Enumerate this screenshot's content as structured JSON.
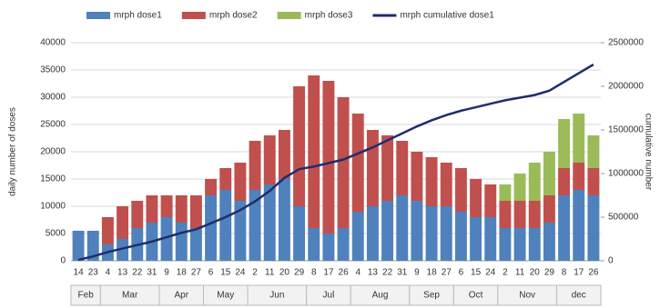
{
  "chart_data": {
    "type": "bar",
    "categories": [
      "14",
      "23",
      "4",
      "13",
      "22",
      "31",
      "9",
      "18",
      "27",
      "6",
      "15",
      "24",
      "2",
      "11",
      "20",
      "29",
      "8",
      "17",
      "26",
      "4",
      "13",
      "22",
      "31",
      "9",
      "18",
      "27",
      "6",
      "15",
      "24",
      "2",
      "11",
      "20",
      "29",
      "8",
      "17",
      "26"
    ],
    "months": [
      "Feb",
      "Mar",
      "Apr",
      "May",
      "Jun",
      "Jul",
      "Aug",
      "Sep",
      "Oct",
      "Nov",
      "dec"
    ],
    "series": [
      {
        "name": "mrph dose1",
        "color": "#4f81bd",
        "values": [
          5500,
          5500,
          3000,
          4000,
          6000,
          7000,
          8000,
          7000,
          6000,
          12000,
          13000,
          11000,
          13000,
          14000,
          15000,
          10000,
          6000,
          5000,
          6000,
          9000,
          10000,
          11000,
          12000,
          11000,
          10000,
          10000,
          9000,
          8000,
          8000,
          6000,
          6000,
          6000,
          7000,
          12000,
          13000,
          12000
        ]
      },
      {
        "name": "mrph dose2",
        "color": "#c0504d",
        "values": [
          0,
          0,
          5000,
          6000,
          5000,
          5000,
          4000,
          5000,
          6000,
          3000,
          4000,
          7000,
          9000,
          9000,
          9000,
          22000,
          28000,
          28000,
          24000,
          18000,
          14000,
          12000,
          10000,
          9000,
          9000,
          8000,
          8000,
          7000,
          6000,
          5000,
          5000,
          5000,
          5000,
          5000,
          5000,
          5000
        ]
      },
      {
        "name": "mrph dose3",
        "color": "#9bbb59",
        "values": [
          0,
          0,
          0,
          0,
          0,
          0,
          0,
          0,
          0,
          0,
          0,
          0,
          0,
          0,
          0,
          0,
          0,
          0,
          0,
          0,
          0,
          0,
          0,
          0,
          0,
          0,
          0,
          0,
          0,
          3000,
          5000,
          7000,
          8000,
          9000,
          9000,
          6000
        ]
      },
      {
        "name": "mrph cumulative dose1",
        "color": "#1f2d6b",
        "type": "line",
        "axis": "y2",
        "values": [
          10000,
          50000,
          100000,
          140000,
          180000,
          220000,
          270000,
          320000,
          360000,
          430000,
          500000,
          580000,
          680000,
          800000,
          950000,
          1050000,
          1080000,
          1120000,
          1160000,
          1230000,
          1300000,
          1380000,
          1460000,
          1540000,
          1610000,
          1670000,
          1720000,
          1760000,
          1800000,
          1840000,
          1870000,
          1900000,
          1950000,
          2050000,
          2150000,
          2250000
        ]
      }
    ],
    "y_label": "daily number of doses",
    "y2_label": "cumulative number",
    "ylim": [
      0,
      40000
    ],
    "yticks": [
      0,
      5000,
      10000,
      15000,
      20000,
      25000,
      30000,
      35000,
      40000
    ],
    "y2lim": [
      0,
      2500000
    ],
    "y2ticks": [
      0,
      500000,
      1000000,
      1500000,
      2000000,
      2500000
    ],
    "grid": true,
    "stacked": true,
    "legend": "top"
  }
}
